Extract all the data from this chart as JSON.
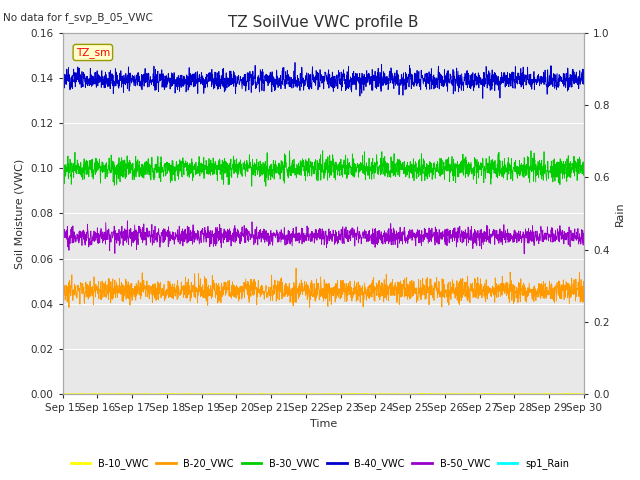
{
  "title": "TZ SoilVue VWC profile B",
  "no_data_text": "No data for f_svp_B_05_VWC",
  "xlabel": "Time",
  "ylabel_left": "Soil Moisture (VWC)",
  "ylabel_right": "Rain",
  "annotation": "TZ_sm",
  "xlim_days": [
    15,
    30
  ],
  "ylim_left": [
    0.0,
    0.16
  ],
  "ylim_right": [
    0.0,
    1.0
  ],
  "yticks_left": [
    0.0,
    0.02,
    0.04,
    0.06,
    0.08,
    0.1,
    0.12,
    0.14,
    0.16
  ],
  "yticks_right": [
    0.0,
    0.2,
    0.4,
    0.6,
    0.8,
    1.0
  ],
  "series": {
    "B10": {
      "mean": 0.0002,
      "std": 0.0001,
      "color": "#ffff00",
      "label": "B-10_VWC"
    },
    "B20": {
      "mean": 0.046,
      "std": 0.0025,
      "color": "#ff9900",
      "label": "B-20_VWC"
    },
    "B30": {
      "mean": 0.1,
      "std": 0.0025,
      "color": "#00cc00",
      "label": "B-30_VWC"
    },
    "B40": {
      "mean": 0.139,
      "std": 0.0022,
      "color": "#0000cc",
      "label": "B-40_VWC"
    },
    "B50": {
      "mean": 0.07,
      "std": 0.002,
      "color": "#9900cc",
      "label": "B-50_VWC"
    },
    "Rain": {
      "mean": 0.0,
      "std": 0.0,
      "color": "#00ffff",
      "label": "sp1_Rain"
    }
  },
  "n_points": 2000,
  "background_color": "#e8e8e8",
  "grid_color": "white",
  "font_color": "#303030",
  "title_fontsize": 11,
  "label_fontsize": 8,
  "tick_fontsize": 7.5,
  "linewidth": 0.6
}
